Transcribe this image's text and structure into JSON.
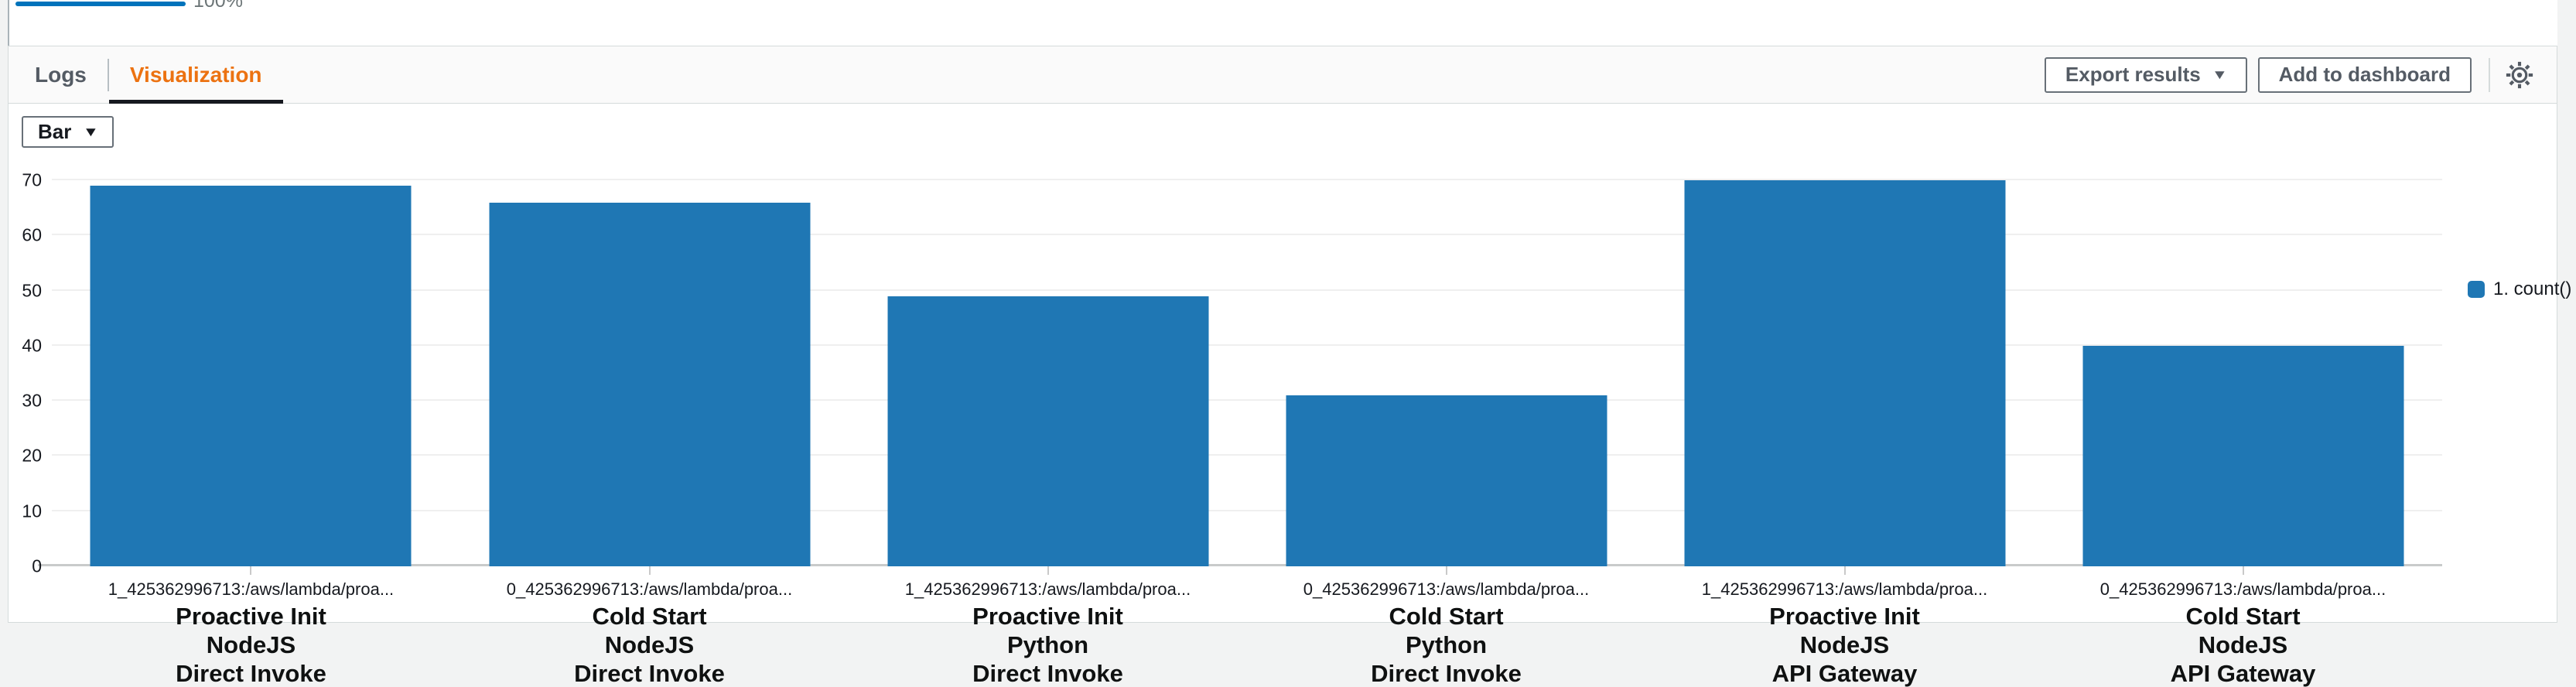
{
  "progress": {
    "label": "100%",
    "value": 100,
    "bar_color": "#0073bb"
  },
  "tabs": [
    {
      "label": "Logs",
      "active": false
    },
    {
      "label": "Visualization",
      "active": true
    }
  ],
  "toolbar": {
    "export_label": "Export results",
    "add_to_dashboard_label": "Add to dashboard",
    "settings_icon": "gear-icon"
  },
  "chart_controls": {
    "type_selector_value": "Bar"
  },
  "legend": [
    {
      "label": "1. count()",
      "color": "#1f77b4"
    }
  ],
  "chart_data": {
    "type": "bar",
    "title": "",
    "xlabel": "",
    "ylabel": "",
    "ylim": [
      0,
      70
    ],
    "yticks": [
      0,
      10,
      20,
      30,
      40,
      50,
      60,
      70
    ],
    "grid": true,
    "legend_position": "right",
    "bar_color": "#1f77b4",
    "categories": [
      {
        "log_group": "1_425362996713:/aws/lambda/proa...",
        "lines": [
          "Proactive Init",
          "NodeJS",
          "Direct Invoke"
        ]
      },
      {
        "log_group": "0_425362996713:/aws/lambda/proa...",
        "lines": [
          "Cold Start",
          "NodeJS",
          "Direct Invoke"
        ]
      },
      {
        "log_group": "1_425362996713:/aws/lambda/proa...",
        "lines": [
          "Proactive Init",
          "Python",
          "Direct Invoke"
        ]
      },
      {
        "log_group": "0_425362996713:/aws/lambda/proa...",
        "lines": [
          "Cold Start",
          "Python",
          "Direct Invoke"
        ]
      },
      {
        "log_group": "1_425362996713:/aws/lambda/proa...",
        "lines": [
          "Proactive Init",
          "NodeJS",
          "API Gateway"
        ]
      },
      {
        "log_group": "0_425362996713:/aws/lambda/proa...",
        "lines": [
          "Cold Start",
          "NodeJS",
          "API Gateway"
        ]
      }
    ],
    "series": [
      {
        "name": "1. count()",
        "values": [
          69,
          66,
          49,
          31,
          70,
          40
        ]
      }
    ]
  }
}
